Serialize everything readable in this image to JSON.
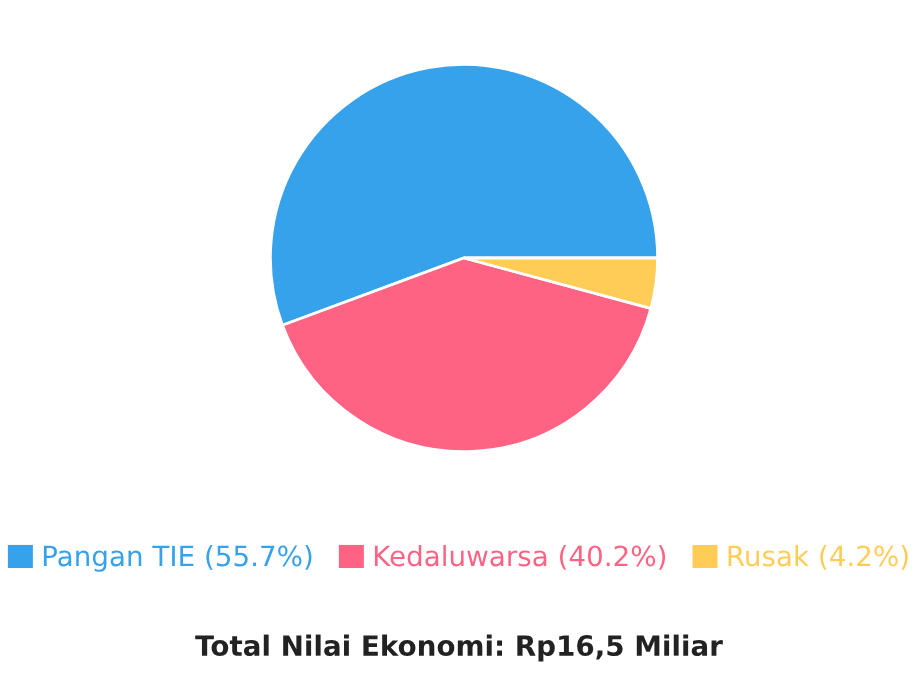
{
  "chart_data": {
    "type": "pie",
    "title": "Total Nilai Ekonomi: Rp16,5 Miliar",
    "categories": [
      "Pangan TIE (55.7%)",
      "Kedaluwarsa (40.2%)",
      "Rusak (4.2%)"
    ],
    "values": [
      55.7,
      40.2,
      4.2
    ],
    "colors": [
      "#36a2eb",
      "#ff6384",
      "#ffcd56"
    ],
    "legend": "bottom"
  }
}
